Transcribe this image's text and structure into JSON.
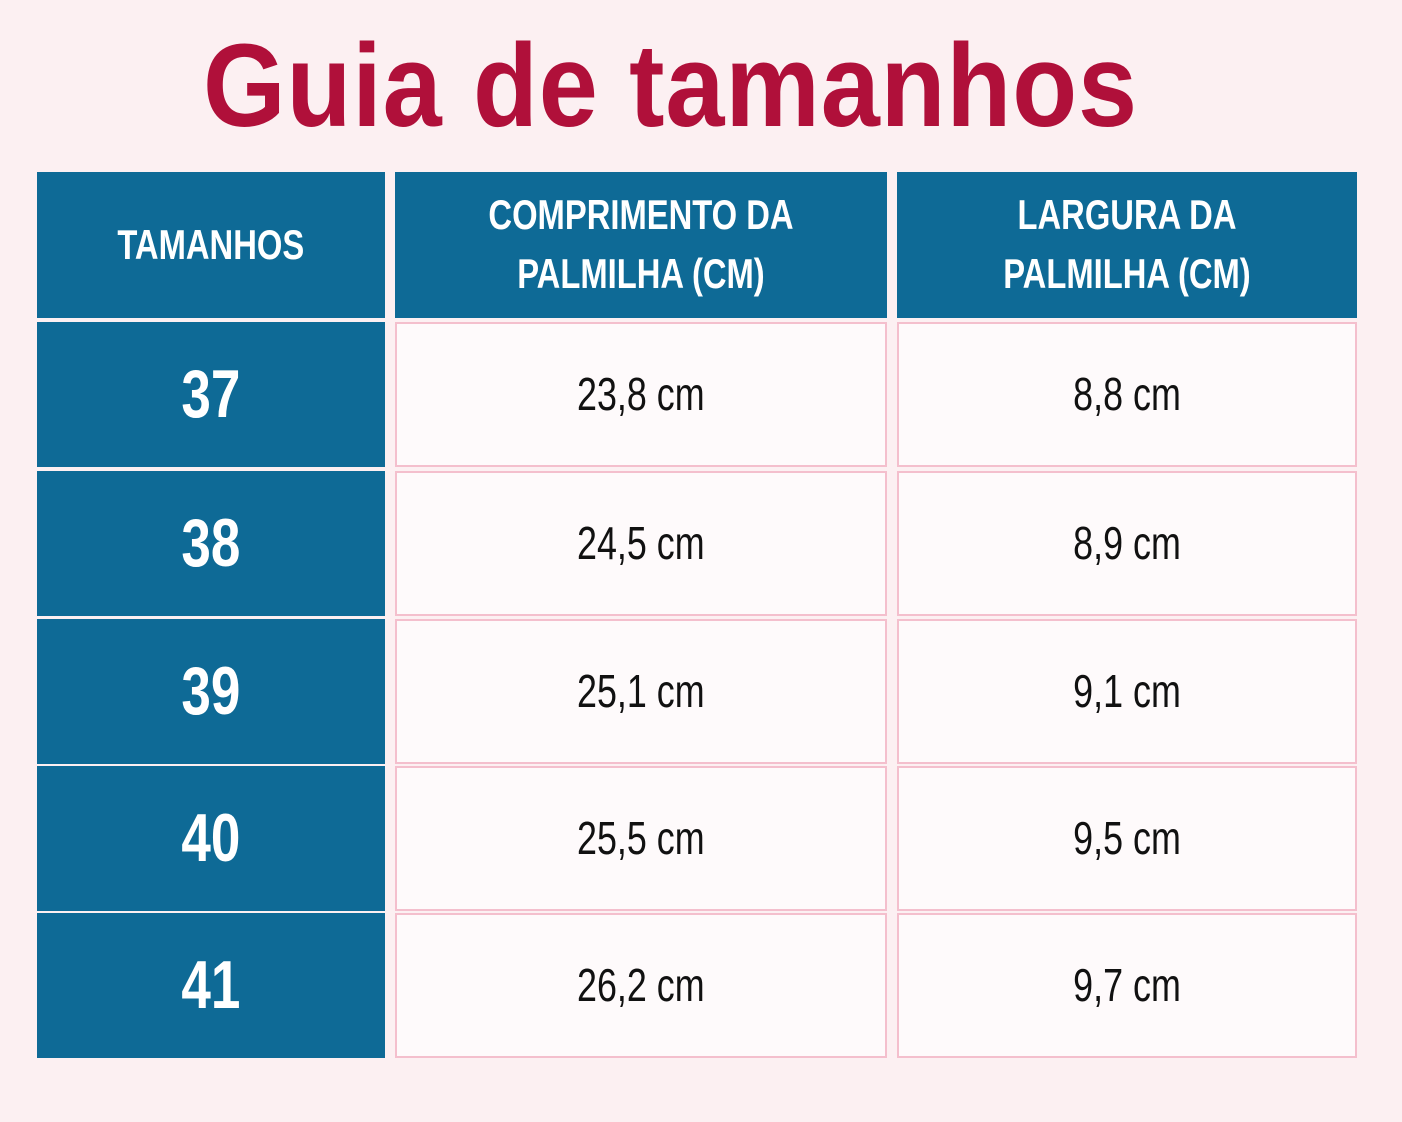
{
  "header": {
    "title": "Guia de tamanhos"
  },
  "table": {
    "headers": [
      "TAMANHOS",
      "COMPRIMENTO DA PALMILHA (CM)",
      "LARGURA DA PALMILHA (CM)"
    ],
    "rows": [
      [
        "37",
        "23,8 cm",
        "8,8 cm"
      ],
      [
        "38",
        "24,5 cm",
        "8,9 cm"
      ],
      [
        "39",
        "25,1 cm",
        "9,1 cm"
      ],
      [
        "40",
        "25,5 cm",
        "9,5 cm"
      ],
      [
        "41",
        "26,2 cm",
        "9,7 cm"
      ]
    ]
  }
}
